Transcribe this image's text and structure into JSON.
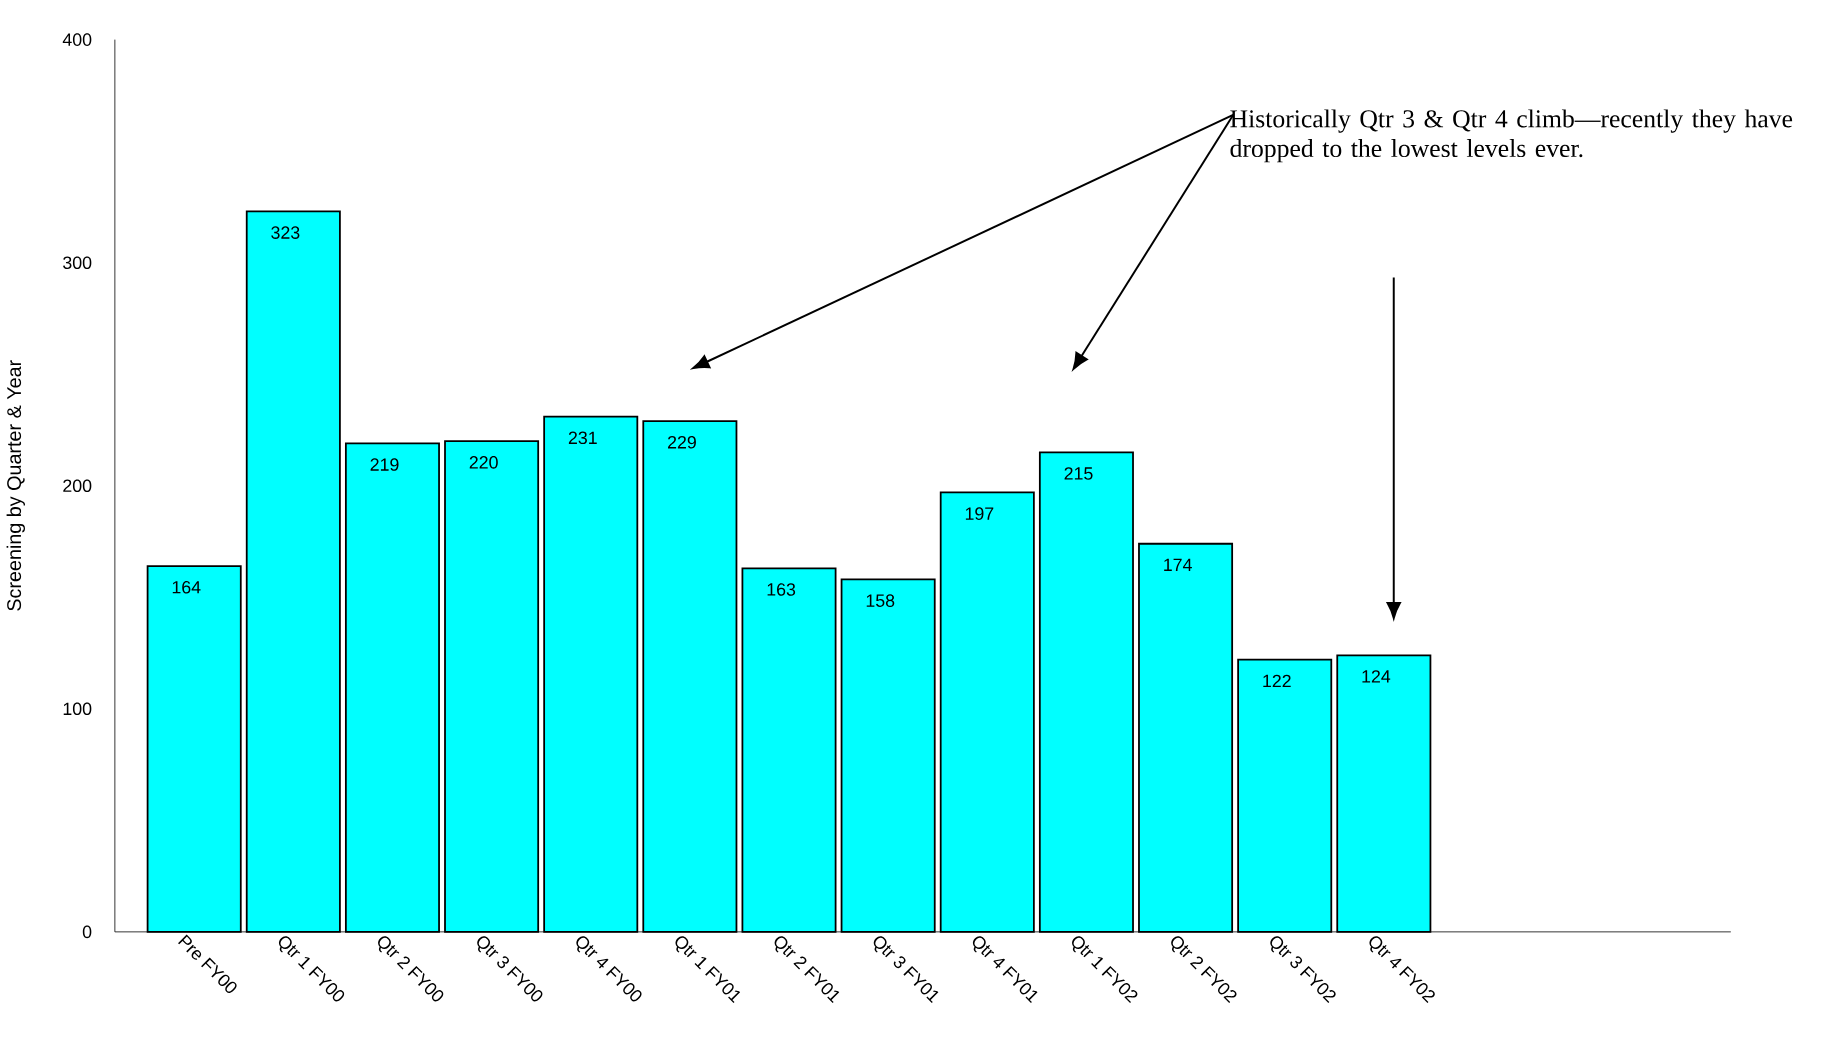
{
  "chart_data": {
    "type": "bar",
    "categories": [
      "Pre FY00",
      "Qtr 1 FY00",
      "Qtr 2 FY00",
      "Qtr 3 FY00",
      "Qtr 4 FY00",
      "Qtr 1 FY01",
      "Qtr 2 FY01",
      "Qtr 3 FY01",
      "Qtr 4 FY01",
      "Qtr 1 FY02",
      "Qtr 2 FY02",
      "Qtr 3 FY02",
      "Qtr 4 FY02"
    ],
    "values": [
      164,
      323,
      219,
      220,
      231,
      229,
      163,
      158,
      197,
      215,
      174,
      122,
      124
    ],
    "color": "#00ffff",
    "ylabel": "Screening by Quarter & Year",
    "ylim": [
      0,
      400
    ],
    "yticks": [
      0,
      100,
      200,
      300,
      400
    ],
    "data_labels": true,
    "annotations": [
      "Historically Qtr 3 & Qtr 4 climb—recently they have dropped to the lowest levels ever."
    ]
  }
}
